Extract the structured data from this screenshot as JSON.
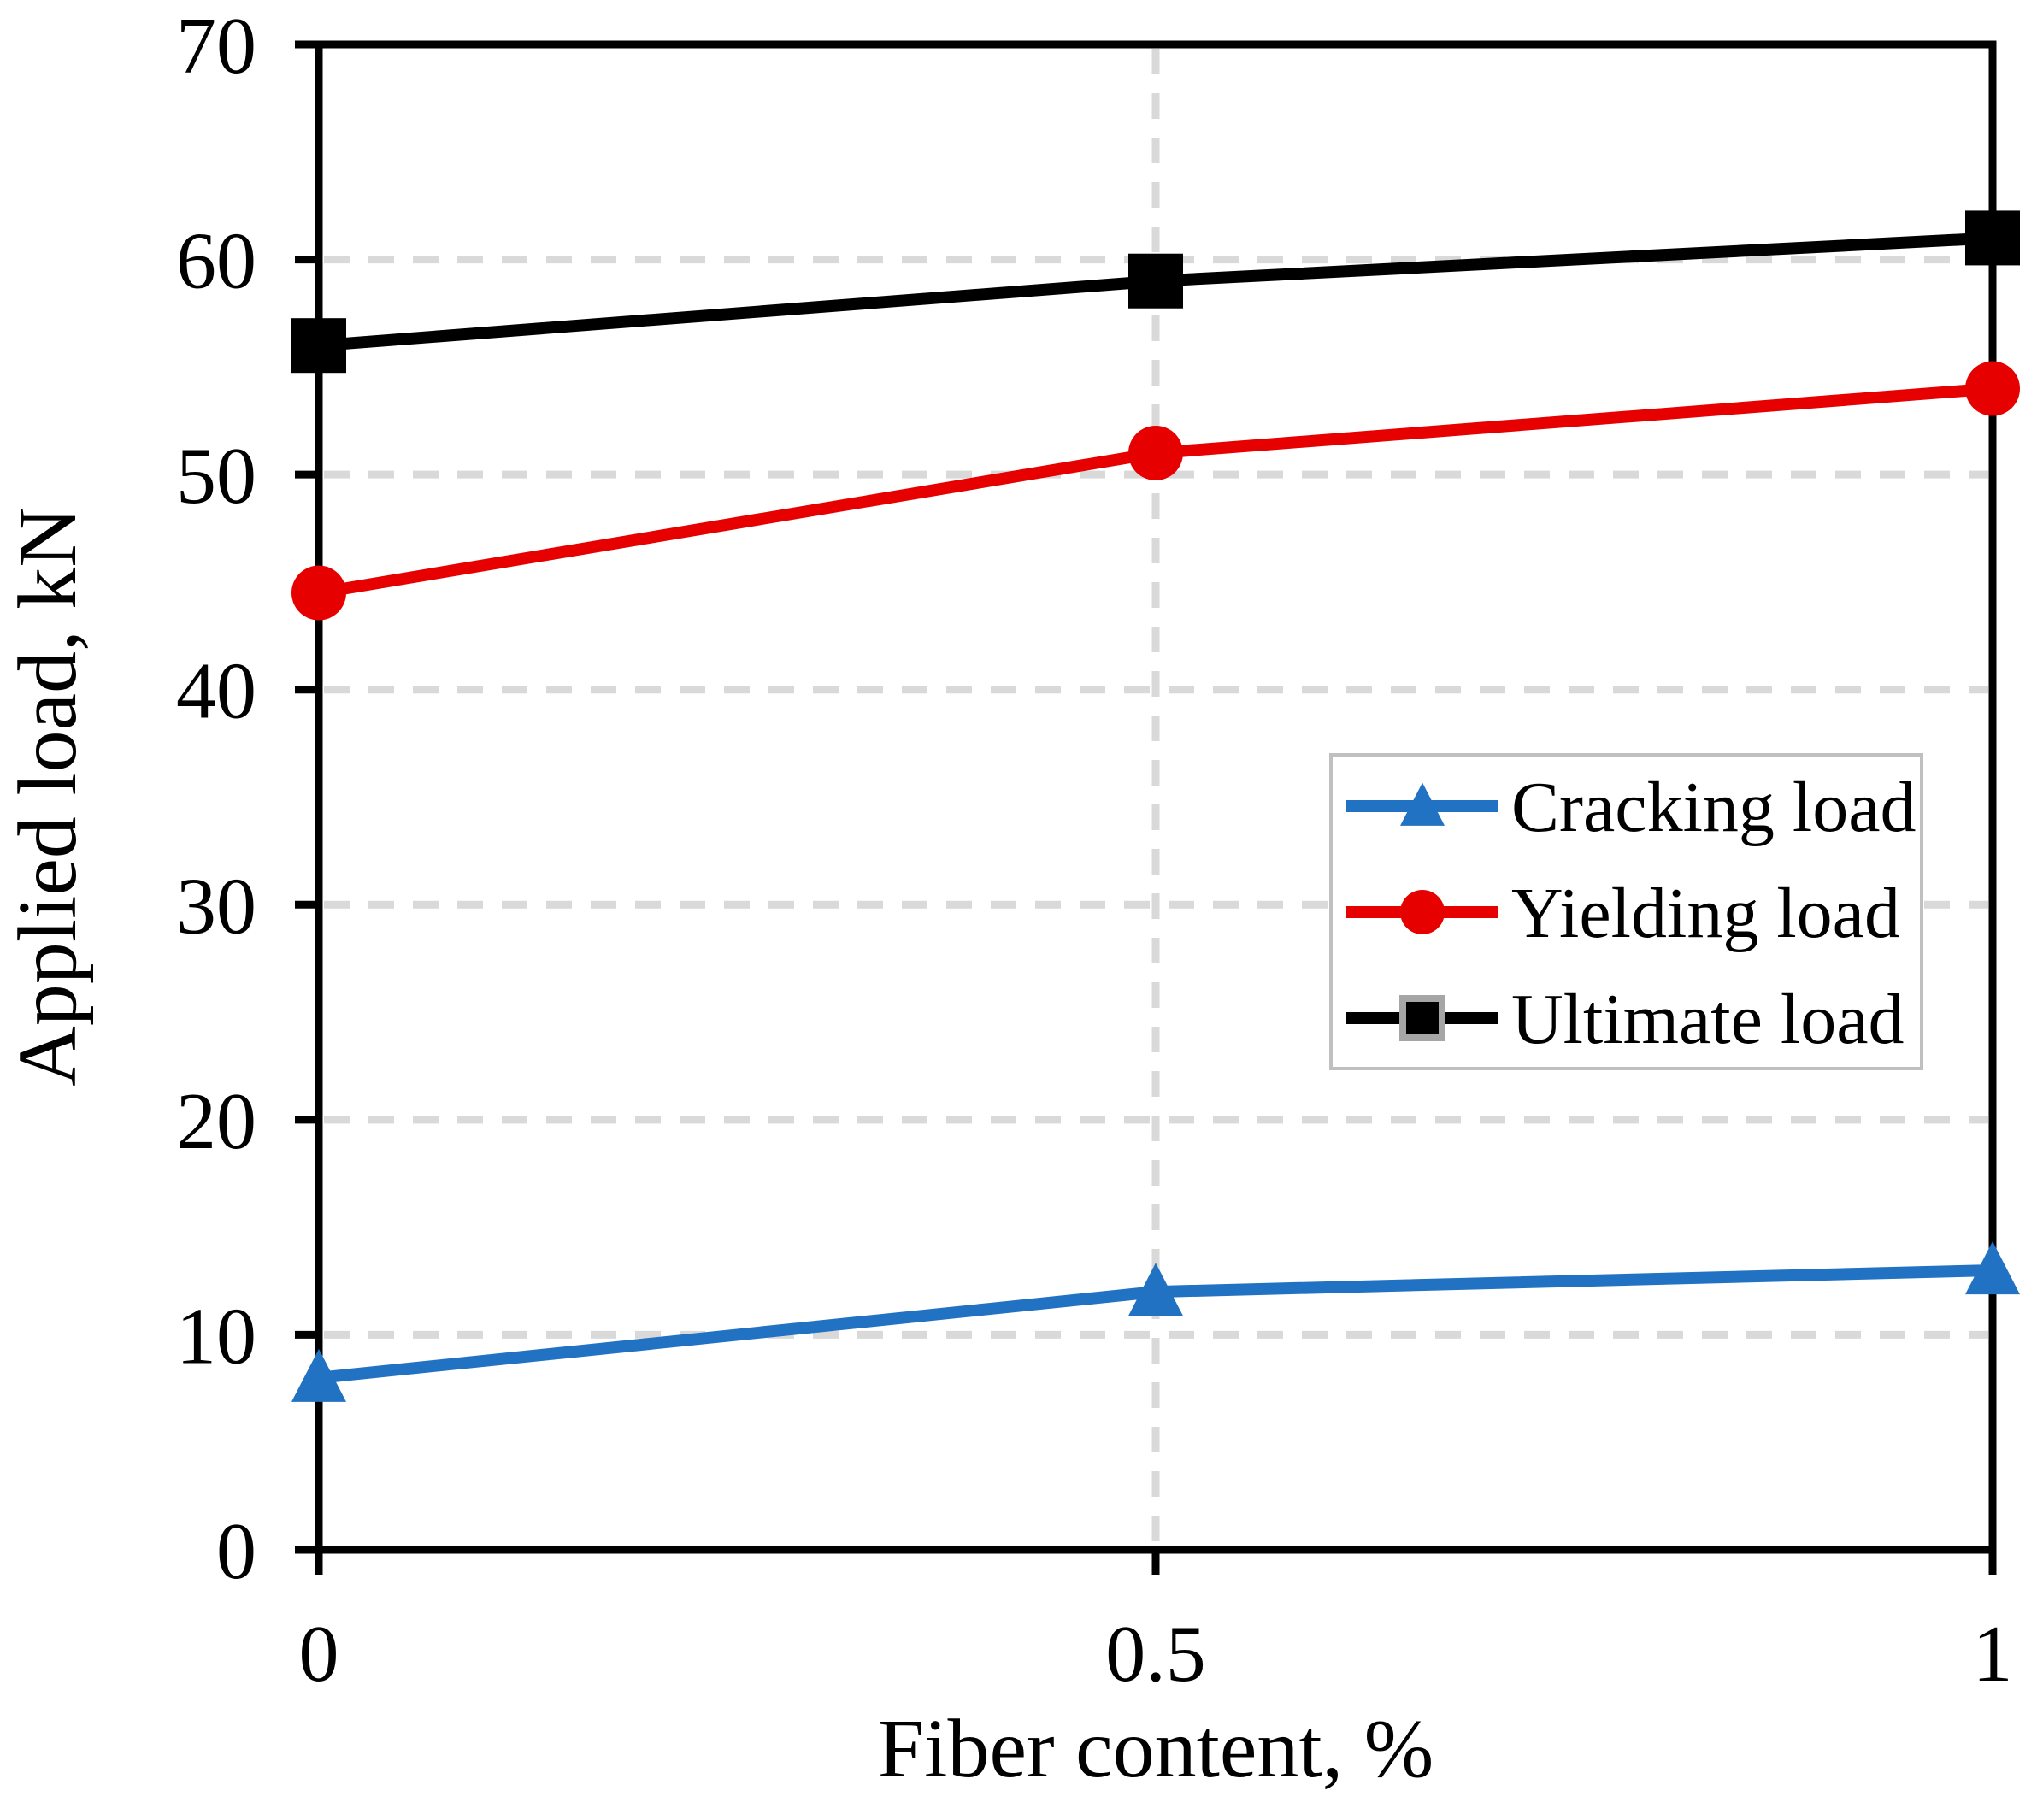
{
  "chart_data": {
    "type": "line",
    "title": "",
    "xlabel": "Fiber content, %",
    "ylabel": "Applied load, kN",
    "xlim": [
      0,
      1
    ],
    "ylim": [
      0,
      70
    ],
    "x": [
      0,
      0.5,
      1
    ],
    "x_tick_labels": [
      "0",
      "0.5",
      "1"
    ],
    "y_ticks": [
      0,
      10,
      20,
      30,
      40,
      50,
      60,
      70
    ],
    "y_tick_labels": [
      "0",
      "10",
      "20",
      "30",
      "40",
      "50",
      "60",
      "70"
    ],
    "grid": "dashed",
    "legend_position": "center-right-box",
    "series": [
      {
        "name": "Cracking load",
        "marker": "triangle",
        "color": "#2272C3",
        "values": [
          8,
          12,
          13
        ]
      },
      {
        "name": "Yielding load",
        "marker": "circle",
        "color": "#E60000",
        "values": [
          44.5,
          51,
          54
        ]
      },
      {
        "name": "Ultimate load",
        "marker": "square",
        "color": "#000000",
        "values": [
          56,
          59,
          61
        ]
      }
    ]
  },
  "colors": {
    "background": "#FFFFFF",
    "axis": "#000000",
    "gridline": "#D9D9D9",
    "legend_border": "#C0C0C0",
    "legend_square_outline": "#A6A6A6"
  }
}
